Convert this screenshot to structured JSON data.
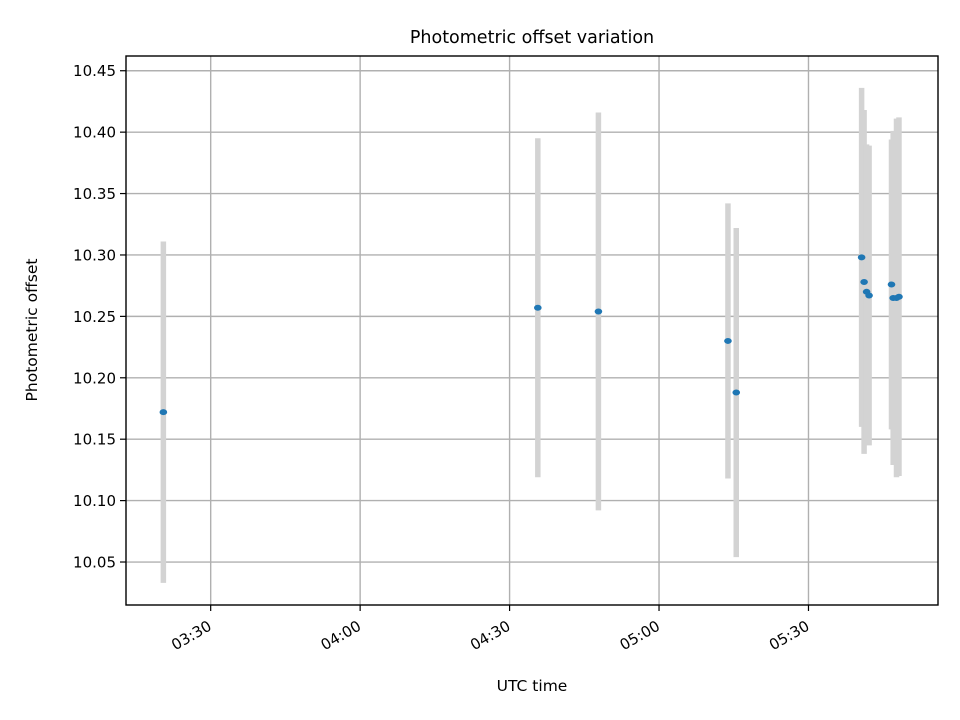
{
  "chart_data": {
    "type": "scatter",
    "title": "Photometric offset variation",
    "xlabel": "UTC time",
    "ylabel": "Photometric offset",
    "x_unit": "UTC HH:MM",
    "xlim": [
      "03:13",
      "05:56"
    ],
    "ylim": [
      10.015,
      10.462
    ],
    "x_ticks": [
      "03:30",
      "04:00",
      "04:30",
      "05:00",
      "05:30"
    ],
    "y_ticks": [
      "10.05",
      "10.10",
      "10.15",
      "10.20",
      "10.25",
      "10.30",
      "10.35",
      "10.40",
      "10.45"
    ],
    "grid": true,
    "colors": {
      "marker": "#1f77b4",
      "errorbar": "#d3d3d3",
      "grid": "#b0b0b0"
    },
    "series": [
      {
        "points": [
          {
            "x": "03:20:30",
            "y": 10.172,
            "err": 0.139
          },
          {
            "x": "04:35:40",
            "y": 10.257,
            "err": 0.138
          },
          {
            "x": "04:47:50",
            "y": 10.254,
            "err": 0.162
          },
          {
            "x": "05:13:50",
            "y": 10.23,
            "err": 0.112
          },
          {
            "x": "05:15:30",
            "y": 10.188,
            "err": 0.134
          },
          {
            "x": "05:40:40",
            "y": 10.298,
            "err": 0.138
          },
          {
            "x": "05:41:10",
            "y": 10.278,
            "err": 0.14
          },
          {
            "x": "05:41:40",
            "y": 10.27,
            "err": 0.12
          },
          {
            "x": "05:42:10",
            "y": 10.267,
            "err": 0.122
          },
          {
            "x": "05:46:40",
            "y": 10.276,
            "err": 0.118
          },
          {
            "x": "05:47:00",
            "y": 10.265,
            "err": 0.136
          },
          {
            "x": "05:47:40",
            "y": 10.265,
            "err": 0.146
          },
          {
            "x": "05:48:10",
            "y": 10.266,
            "err": 0.146
          }
        ]
      }
    ]
  }
}
